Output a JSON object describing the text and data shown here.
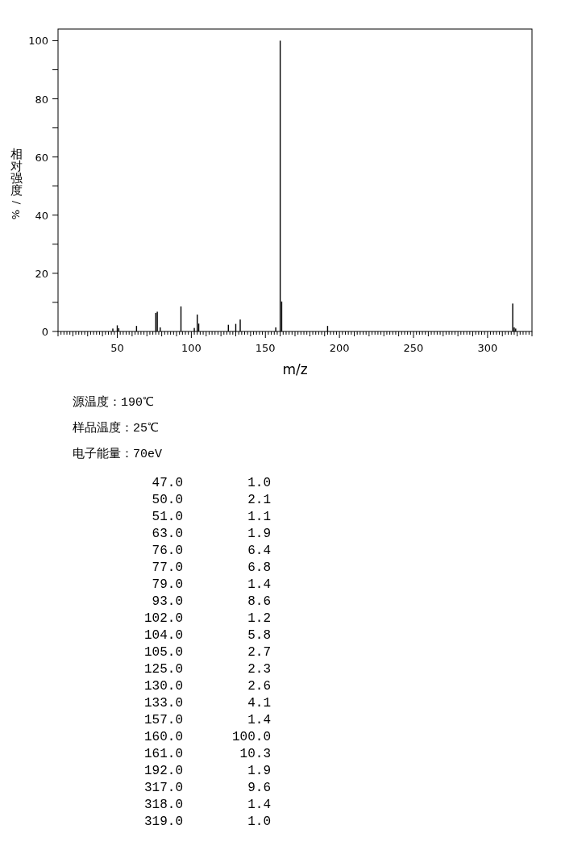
{
  "chart_data": [
    {
      "type": "bar",
      "xlabel": "m/z",
      "ylabel": "相对强度/%",
      "annotations": [
        "源温度：190℃",
        "样品温度：25℃",
        "电子能量：70eV"
      ],
      "x": [
        47,
        50,
        51,
        63,
        76,
        77,
        79,
        93,
        102,
        104,
        105,
        125,
        130,
        133,
        157,
        160,
        161,
        192,
        317,
        318,
        319
      ],
      "values": [
        1.0,
        2.1,
        1.1,
        1.9,
        6.4,
        6.8,
        1.4,
        8.6,
        1.2,
        5.8,
        2.7,
        2.3,
        2.6,
        4.1,
        1.4,
        100.0,
        10.3,
        1.9,
        9.6,
        1.4,
        1.0
      ],
      "color": "#000000",
      "xlim": [
        10,
        330
      ],
      "xticks": [
        {
          "value": 10,
          "label": null
        },
        {
          "value": 12,
          "label": null
        },
        {
          "value": 14,
          "label": null
        },
        {
          "value": 16,
          "label": null
        },
        {
          "value": 18,
          "label": null
        },
        {
          "value": 20,
          "label": null
        },
        {
          "value": 22,
          "label": null
        },
        {
          "value": 24,
          "label": null
        },
        {
          "value": 26,
          "label": null
        },
        {
          "value": 28,
          "label": null
        },
        {
          "value": 30,
          "label": null
        },
        {
          "value": 32,
          "label": null
        },
        {
          "value": 34,
          "label": null
        },
        {
          "value": 36,
          "label": null
        },
        {
          "value": 38,
          "label": null
        },
        {
          "value": 40,
          "label": null
        },
        {
          "value": 42,
          "label": null
        },
        {
          "value": 44,
          "label": null
        },
        {
          "value": 46,
          "label": null
        },
        {
          "value": 48,
          "label": null
        },
        50,
        {
          "value": 52,
          "label": null
        },
        {
          "value": 54,
          "label": null
        },
        {
          "value": 56,
          "label": null
        },
        {
          "value": 58,
          "label": null
        },
        {
          "value": 60,
          "label": null
        },
        {
          "value": 62,
          "label": null
        },
        {
          "value": 64,
          "label": null
        },
        {
          "value": 66,
          "label": null
        },
        {
          "value": 68,
          "label": null
        },
        {
          "value": 70,
          "label": null
        },
        {
          "value": 72,
          "label": null
        },
        {
          "value": 74,
          "label": null
        },
        {
          "value": 76,
          "label": null
        },
        {
          "value": 78,
          "label": null
        },
        {
          "value": 80,
          "label": null
        },
        {
          "value": 82,
          "label": null
        },
        {
          "value": 84,
          "label": null
        },
        {
          "value": 86,
          "label": null
        },
        {
          "value": 88,
          "label": null
        },
        {
          "value": 90,
          "label": null
        },
        {
          "value": 92,
          "label": null
        },
        {
          "value": 94,
          "label": null
        },
        {
          "value": 96,
          "label": null
        },
        {
          "value": 98,
          "label": null
        },
        100,
        {
          "value": 102,
          "label": null
        },
        {
          "value": 104,
          "label": null
        },
        {
          "value": 106,
          "label": null
        },
        {
          "value": 108,
          "label": null
        },
        {
          "value": 110,
          "label": null
        },
        {
          "value": 112,
          "label": null
        },
        {
          "value": 114,
          "label": null
        },
        {
          "value": 116,
          "label": null
        },
        {
          "value": 118,
          "label": null
        },
        {
          "value": 120,
          "label": null
        },
        {
          "value": 122,
          "label": null
        },
        {
          "value": 124,
          "label": null
        },
        {
          "value": 126,
          "label": null
        },
        {
          "value": 128,
          "label": null
        },
        {
          "value": 130,
          "label": null
        },
        {
          "value": 132,
          "label": null
        },
        {
          "value": 134,
          "label": null
        },
        {
          "value": 136,
          "label": null
        },
        {
          "value": 138,
          "label": null
        },
        {
          "value": 140,
          "label": null
        },
        {
          "value": 142,
          "label": null
        },
        {
          "value": 144,
          "label": null
        },
        {
          "value": 146,
          "label": null
        },
        {
          "value": 148,
          "label": null
        },
        150,
        {
          "value": 152,
          "label": null
        },
        {
          "value": 154,
          "label": null
        },
        {
          "value": 156,
          "label": null
        },
        {
          "value": 158,
          "label": null
        },
        {
          "value": 160,
          "label": null
        },
        {
          "value": 162,
          "label": null
        },
        {
          "value": 164,
          "label": null
        },
        {
          "value": 166,
          "label": null
        },
        {
          "value": 168,
          "label": null
        },
        {
          "value": 170,
          "label": null
        },
        {
          "value": 172,
          "label": null
        },
        {
          "value": 174,
          "label": null
        },
        {
          "value": 176,
          "label": null
        },
        {
          "value": 178,
          "label": null
        },
        {
          "value": 180,
          "label": null
        },
        {
          "value": 182,
          "label": null
        },
        {
          "value": 184,
          "label": null
        },
        {
          "value": 186,
          "label": null
        },
        {
          "value": 188,
          "label": null
        },
        {
          "value": 190,
          "label": null
        },
        {
          "value": 192,
          "label": null
        },
        {
          "value": 194,
          "label": null
        },
        {
          "value": 196,
          "label": null
        },
        {
          "value": 198,
          "label": null
        },
        200,
        {
          "value": 202,
          "label": null
        },
        {
          "value": 204,
          "label": null
        },
        {
          "value": 206,
          "label": null
        },
        {
          "value": 208,
          "label": null
        },
        {
          "value": 210,
          "label": null
        },
        {
          "value": 212,
          "label": null
        },
        {
          "value": 214,
          "label": null
        },
        {
          "value": 216,
          "label": null
        },
        {
          "value": 218,
          "label": null
        },
        {
          "value": 220,
          "label": null
        },
        {
          "value": 222,
          "label": null
        },
        {
          "value": 224,
          "label": null
        },
        {
          "value": 226,
          "label": null
        },
        {
          "value": 228,
          "label": null
        },
        {
          "value": 230,
          "label": null
        },
        {
          "value": 232,
          "label": null
        },
        {
          "value": 234,
          "label": null
        },
        {
          "value": 236,
          "label": null
        },
        {
          "value": 238,
          "label": null
        },
        {
          "value": 240,
          "label": null
        },
        {
          "value": 242,
          "label": null
        },
        {
          "value": 244,
          "label": null
        },
        {
          "value": 246,
          "label": null
        },
        {
          "value": 248,
          "label": null
        },
        250,
        {
          "value": 252,
          "label": null
        },
        {
          "value": 254,
          "label": null
        },
        {
          "value": 256,
          "label": null
        },
        {
          "value": 258,
          "label": null
        },
        {
          "value": 260,
          "label": null
        },
        {
          "value": 262,
          "label": null
        },
        {
          "value": 264,
          "label": null
        },
        {
          "value": 266,
          "label": null
        },
        {
          "value": 268,
          "label": null
        },
        {
          "value": 270,
          "label": null
        },
        {
          "value": 272,
          "label": null
        },
        {
          "value": 274,
          "label": null
        },
        {
          "value": 276,
          "label": null
        },
        {
          "value": 278,
          "label": null
        },
        {
          "value": 280,
          "label": null
        },
        {
          "value": 282,
          "label": null
        },
        {
          "value": 284,
          "label": null
        },
        {
          "value": 286,
          "label": null
        },
        {
          "value": 288,
          "label": null
        },
        {
          "value": 290,
          "label": null
        },
        {
          "value": 292,
          "label": null
        },
        {
          "value": 294,
          "label": null
        },
        {
          "value": 296,
          "label": null
        },
        {
          "value": 298,
          "label": null
        },
        300,
        {
          "value": 302,
          "label": null
        },
        {
          "value": 304,
          "label": null
        },
        {
          "value": 306,
          "label": null
        },
        {
          "value": 308,
          "label": null
        },
        {
          "value": 310,
          "label": null
        },
        {
          "value": 312,
          "label": null
        },
        {
          "value": 314,
          "label": null
        },
        {
          "value": 316,
          "label": null
        },
        {
          "value": 318,
          "label": null
        },
        {
          "value": 320,
          "label": null
        },
        {
          "value": 322,
          "label": null
        },
        {
          "value": 324,
          "label": null
        },
        {
          "value": 326,
          "label": null
        },
        {
          "value": 328,
          "label": null
        },
        {
          "value": 330,
          "label": null
        }
      ],
      "ylim": [
        0,
        104
      ],
      "yticks": [
        0,
        {
          "value": 10,
          "label": null
        },
        20,
        {
          "value": 30,
          "label": null
        },
        40,
        {
          "value": 50,
          "label": null
        },
        60,
        {
          "value": 70,
          "label": null
        },
        80,
        {
          "value": 90,
          "label": null
        },
        100
      ]
    },
    {
      "type": "other",
      "categories": [
        "47.0",
        "50.0",
        "51.0",
        "63.0",
        "76.0",
        "77.0",
        "79.0",
        "93.0",
        "102.0",
        "104.0",
        "105.0",
        "125.0",
        "130.0",
        "133.0",
        "157.0",
        "160.0",
        "161.0",
        "192.0",
        "317.0",
        "318.0",
        "319.0"
      ],
      "value_labels": [
        "1.0",
        "2.1",
        "1.1",
        "1.9",
        "6.4",
        "6.8",
        "1.4",
        "8.6",
        "1.2",
        "5.8",
        "2.7",
        "2.3",
        "2.6",
        "4.1",
        "1.4",
        "100.0",
        "10.3",
        "1.9",
        "9.6",
        "1.4",
        "1.0"
      ]
    }
  ]
}
